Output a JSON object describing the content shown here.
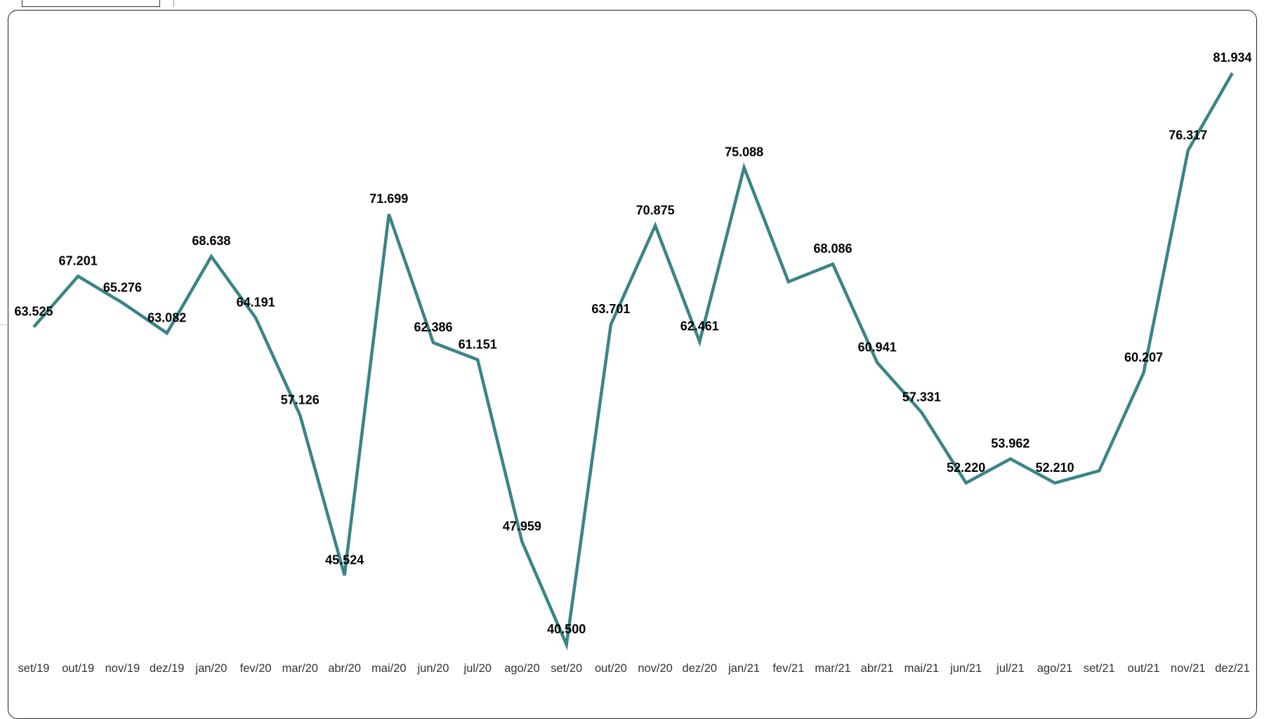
{
  "chart_data": {
    "type": "line",
    "title": "",
    "xlabel": "",
    "ylabel": "",
    "categories": [
      "set/19",
      "out/19",
      "nov/19",
      "dez/19",
      "jan/20",
      "fev/20",
      "mar/20",
      "abr/20",
      "mai/20",
      "jun/20",
      "jul/20",
      "ago/20",
      "set/20",
      "out/20",
      "nov/20",
      "dez/20",
      "jan/21",
      "fev/21",
      "mar/21",
      "abr/21",
      "mai/21",
      "jun/21",
      "jul/21",
      "ago/21",
      "set/21",
      "out/21",
      "nov/21",
      "dez/21"
    ],
    "values": [
      63525,
      67201,
      65276,
      63082,
      68638,
      64191,
      57126,
      45524,
      71699,
      62386,
      61151,
      47959,
      40500,
      63701,
      70875,
      62461,
      75088,
      66800,
      68086,
      60941,
      57331,
      52220,
      53962,
      52210,
      53100,
      60207,
      76317,
      81934
    ],
    "data_labels": [
      "63.525",
      "67.201",
      "65.276",
      "63.082",
      "68.638",
      "64.191",
      "57.126",
      "45.524",
      "71.699",
      "62.386",
      "61.151",
      "47.959",
      "40.500",
      "63.701",
      "70.875",
      "62.461",
      "75.088",
      "",
      "68.086",
      "60.941",
      "57.331",
      "52.220",
      "53.962",
      "52.210",
      "",
      "60.207",
      "76.317",
      "81.934"
    ],
    "line_color": "#3a8486",
    "grid": false,
    "legend": "none"
  }
}
